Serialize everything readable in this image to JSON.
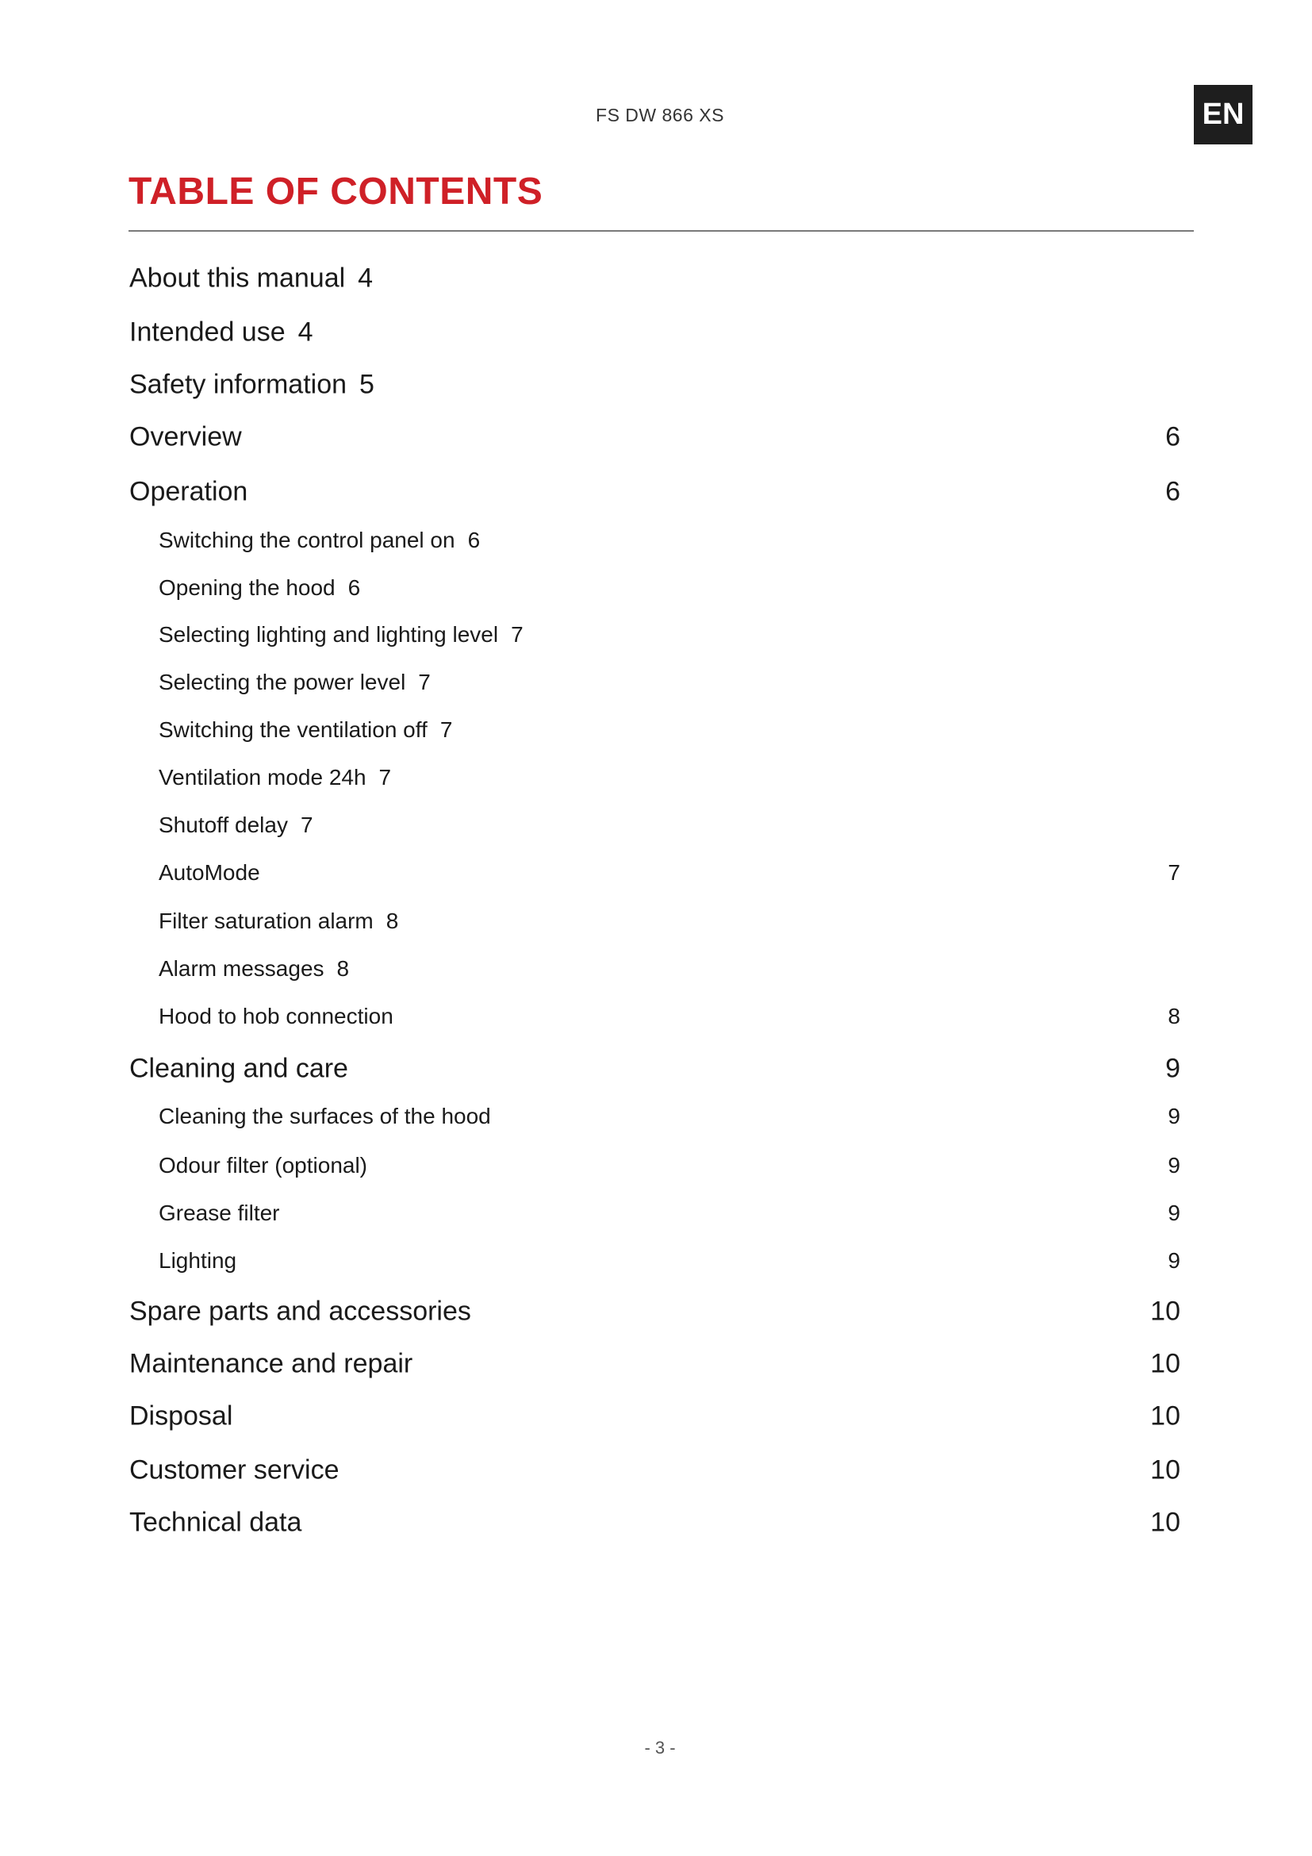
{
  "header": {
    "model": "FS DW 866 XS",
    "language_tab": "EN"
  },
  "title": "TABLE OF CONTENTS",
  "toc": [
    {
      "label": "About this manual",
      "page": "4",
      "level": 1,
      "align": "inline"
    },
    {
      "label": "Intended use",
      "page": "4",
      "level": 1,
      "align": "inline"
    },
    {
      "label": "Safety information",
      "page": "5",
      "level": 1,
      "align": "inline"
    },
    {
      "label": "Overview",
      "page": "6",
      "level": 1,
      "align": "right"
    },
    {
      "label": "Operation",
      "page": "6",
      "level": 1,
      "align": "right"
    },
    {
      "label": "Switching the control panel on",
      "page": "6",
      "level": 2,
      "align": "inline"
    },
    {
      "label": "Opening the hood",
      "page": "6",
      "level": 2,
      "align": "inline"
    },
    {
      "label": "Selecting lighting and lighting level",
      "page": "7",
      "level": 2,
      "align": "inline"
    },
    {
      "label": "Selecting the power level",
      "page": "7",
      "level": 2,
      "align": "inline"
    },
    {
      "label": "Switching the ventilation off",
      "page": "7",
      "level": 2,
      "align": "inline"
    },
    {
      "label": "Ventilation mode 24h",
      "page": "7",
      "level": 2,
      "align": "inline"
    },
    {
      "label": "Shutoff delay",
      "page": "7",
      "level": 2,
      "align": "inline"
    },
    {
      "label": "AutoMode",
      "page": "7",
      "level": 2,
      "align": "right"
    },
    {
      "label": "Filter saturation alarm",
      "page": "8",
      "level": 2,
      "align": "inline"
    },
    {
      "label": "Alarm messages",
      "page": "8",
      "level": 2,
      "align": "inline"
    },
    {
      "label": "Hood to hob connection",
      "page": "8",
      "level": 2,
      "align": "right"
    },
    {
      "label": "Cleaning and care",
      "page": "9",
      "level": 1,
      "align": "right"
    },
    {
      "label": "Cleaning the surfaces of the hood",
      "page": "9",
      "level": 2,
      "align": "right"
    },
    {
      "label": "Odour filter (optional)",
      "page": "9",
      "level": 2,
      "align": "right"
    },
    {
      "label": "Grease filter",
      "page": "9",
      "level": 2,
      "align": "right"
    },
    {
      "label": "Lighting",
      "page": "9",
      "level": 2,
      "align": "right"
    },
    {
      "label": "Spare parts and accessories",
      "page": "10",
      "level": 1,
      "align": "right"
    },
    {
      "label": "Maintenance and repair",
      "page": "10",
      "level": 1,
      "align": "right"
    },
    {
      "label": "Disposal",
      "page": "10",
      "level": 1,
      "align": "right"
    },
    {
      "label": "Customer service",
      "page": "10",
      "level": 1,
      "align": "right"
    },
    {
      "label": "Technical data",
      "page": "10",
      "level": 1,
      "align": "right"
    }
  ],
  "footer": {
    "page_number": "- 3 -"
  },
  "colors": {
    "title": "#cf2027",
    "language_tab_bg": "#1e1e1e"
  }
}
